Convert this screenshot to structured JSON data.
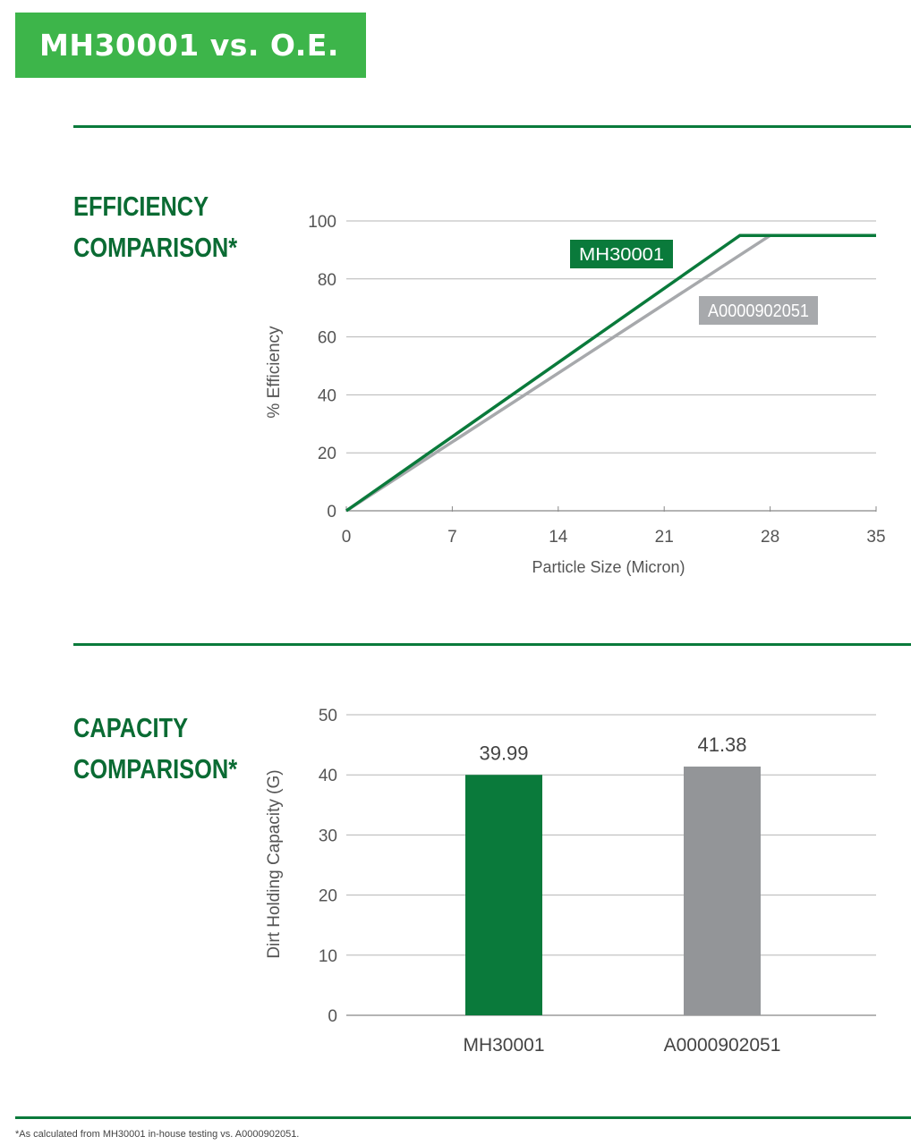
{
  "header": {
    "title": "MH30001 vs. O.E."
  },
  "sections": {
    "efficiency_heading_line1": "EFFICIENCY",
    "efficiency_heading_line2": "COMPARISON*",
    "capacity_heading_line1": "CAPACITY",
    "capacity_heading_line2": "COMPARISON*"
  },
  "footnote": "*As calculated from MH30001 in-house testing vs. A0000902051.",
  "colors": {
    "brand_green": "#3db54a",
    "dark_green": "#0a6b33",
    "mh_green": "#0a7a3b",
    "oe_gray": "#a7a9ac",
    "bar_gray": "#939598"
  },
  "chart_data": [
    {
      "type": "line",
      "title": "",
      "xlabel": "Particle Size (Micron)",
      "ylabel": "% Efficiency",
      "xlim": [
        0,
        35
      ],
      "ylim": [
        0,
        100
      ],
      "xticks": [
        0,
        7,
        14,
        21,
        28,
        35
      ],
      "yticks": [
        0,
        20,
        40,
        60,
        80,
        100
      ],
      "grid": true,
      "series": [
        {
          "name": "MH30001",
          "color": "#0a7a3b",
          "x": [
            0,
            26,
            35
          ],
          "y": [
            0,
            95,
            95
          ]
        },
        {
          "name": "A0000902051",
          "color": "#a7a9ac",
          "x": [
            0,
            28,
            35
          ],
          "y": [
            0,
            95,
            95
          ]
        }
      ]
    },
    {
      "type": "bar",
      "title": "",
      "xlabel": "",
      "ylabel": "Dirt Holding Capacity (G)",
      "ylim": [
        0,
        50
      ],
      "yticks": [
        0,
        10,
        20,
        30,
        40,
        50
      ],
      "grid": true,
      "categories": [
        "MH30001",
        "A0000902051"
      ],
      "values": [
        39.99,
        41.38
      ],
      "value_labels": [
        "39.99",
        "41.38"
      ],
      "colors": [
        "#0a7a3b",
        "#939598"
      ]
    }
  ]
}
